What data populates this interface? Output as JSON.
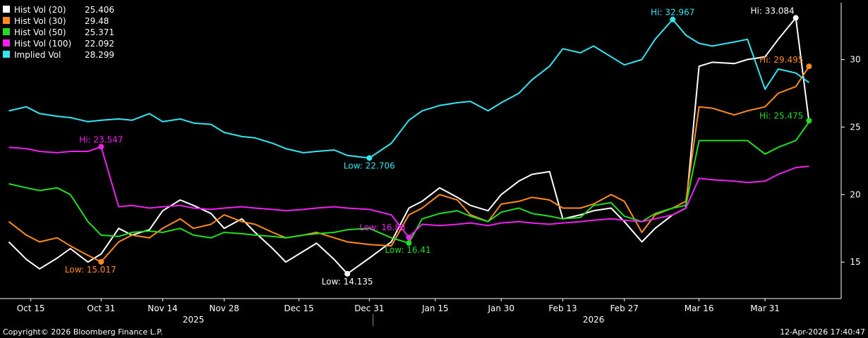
{
  "chart_data": {
    "type": "line",
    "x_dates": [
      "2025-10-10",
      "2025-10-14",
      "2025-10-17",
      "2025-10-21",
      "2025-10-24",
      "2025-10-28",
      "2025-10-31",
      "2025-11-04",
      "2025-11-07",
      "2025-11-11",
      "2025-11-14",
      "2025-11-18",
      "2025-11-21",
      "2025-11-25",
      "2025-11-28",
      "2025-12-02",
      "2025-12-05",
      "2025-12-09",
      "2025-12-12",
      "2025-12-16",
      "2025-12-19",
      "2025-12-23",
      "2025-12-26",
      "2025-12-31",
      "2026-01-05",
      "2026-01-09",
      "2026-01-12",
      "2026-01-16",
      "2026-01-20",
      "2026-01-23",
      "2026-01-27",
      "2026-01-30",
      "2026-02-03",
      "2026-02-06",
      "2026-02-10",
      "2026-02-13",
      "2026-02-17",
      "2026-02-20",
      "2026-02-24",
      "2026-02-27",
      "2026-03-03",
      "2026-03-06",
      "2026-03-10",
      "2026-03-13",
      "2026-03-16",
      "2026-03-19",
      "2026-03-24",
      "2026-03-27",
      "2026-03-31",
      "2026-04-03",
      "2026-04-07",
      "2026-04-10"
    ],
    "series": [
      {
        "name": "Hist Vol (20)",
        "color": "#ffffff",
        "last": "25.406",
        "values": [
          16.5,
          15.2,
          14.5,
          15.3,
          16.0,
          15.0,
          15.6,
          17.5,
          17.0,
          17.4,
          18.8,
          19.6,
          19.2,
          18.6,
          17.5,
          18.2,
          17.2,
          16.0,
          15.0,
          15.8,
          16.4,
          15.2,
          14.135,
          15.3,
          16.5,
          19.0,
          19.5,
          20.5,
          19.8,
          19.2,
          18.8,
          20.0,
          21.0,
          21.5,
          21.7,
          18.2,
          18.5,
          18.8,
          19.0,
          18.0,
          16.5,
          17.5,
          18.5,
          19.0,
          29.5,
          29.8,
          29.7,
          30.0,
          30.2,
          31.5,
          33.084,
          25.406
        ]
      },
      {
        "name": "Hist Vol (30)",
        "color": "#ff8c1a",
        "last": "29.48",
        "values": [
          18.0,
          17.0,
          16.5,
          16.8,
          16.2,
          15.5,
          15.017,
          16.5,
          17.0,
          16.8,
          17.5,
          18.2,
          17.5,
          17.8,
          18.5,
          18.0,
          17.8,
          17.2,
          16.8,
          17.0,
          17.2,
          16.8,
          16.5,
          16.3,
          16.2,
          18.5,
          19.0,
          20.0,
          19.6,
          18.5,
          18.0,
          19.3,
          19.5,
          19.8,
          19.6,
          19.0,
          19.0,
          19.3,
          20.0,
          19.5,
          17.2,
          18.5,
          19.0,
          19.5,
          26.5,
          26.4,
          25.9,
          26.2,
          26.5,
          27.5,
          28.0,
          29.48
        ]
      },
      {
        "name": "Hist Vol (50)",
        "color": "#22dd22",
        "last": "25.371",
        "values": [
          20.8,
          20.5,
          20.3,
          20.5,
          20.0,
          18.0,
          17.0,
          16.9,
          17.2,
          17.3,
          17.2,
          17.5,
          17.0,
          16.8,
          17.2,
          17.1,
          17.0,
          16.9,
          16.8,
          17.0,
          17.1,
          17.2,
          17.4,
          17.5,
          16.8,
          16.41,
          18.2,
          18.6,
          18.8,
          18.4,
          18.0,
          18.7,
          19.0,
          18.6,
          18.4,
          18.2,
          18.3,
          19.2,
          19.4,
          18.4,
          18.0,
          18.6,
          19.0,
          19.2,
          24.0,
          24.0,
          24.0,
          24.0,
          23.0,
          23.5,
          24.0,
          25.371
        ]
      },
      {
        "name": "Hist Vol (100)",
        "color": "#ee22ee",
        "last": "22.092",
        "values": [
          23.5,
          23.4,
          23.2,
          23.1,
          23.2,
          23.2,
          23.547,
          19.1,
          19.2,
          19.0,
          19.1,
          19.2,
          19.0,
          18.9,
          19.0,
          19.1,
          19.0,
          18.9,
          18.8,
          18.9,
          19.0,
          19.1,
          19.0,
          18.9,
          18.5,
          16.83,
          17.8,
          17.7,
          17.8,
          17.9,
          17.7,
          17.9,
          18.0,
          17.9,
          17.8,
          17.9,
          18.0,
          18.1,
          18.2,
          18.1,
          18.0,
          18.2,
          18.5,
          19.0,
          21.2,
          21.1,
          21.0,
          20.9,
          21.0,
          21.5,
          22.0,
          22.092
        ]
      },
      {
        "name": "Implied Vol",
        "color": "#33e6f0",
        "last": "28.299",
        "values": [
          26.2,
          26.5,
          26.0,
          25.8,
          25.7,
          25.4,
          25.5,
          25.6,
          25.5,
          26.0,
          25.4,
          25.6,
          25.3,
          25.2,
          24.6,
          24.3,
          24.2,
          23.8,
          23.4,
          23.1,
          23.2,
          23.3,
          22.9,
          22.706,
          23.8,
          25.5,
          26.2,
          26.6,
          26.8,
          26.9,
          26.2,
          26.8,
          27.5,
          28.5,
          29.5,
          30.8,
          30.5,
          31.0,
          30.2,
          29.6,
          30.0,
          31.5,
          32.967,
          31.8,
          31.2,
          31.0,
          31.3,
          31.5,
          27.8,
          29.3,
          29.0,
          28.299
        ]
      }
    ],
    "annotations": [
      {
        "text": "Hi: 33.084",
        "series": 0,
        "index": 50,
        "value": 33.084
      },
      {
        "text": "Low: 14.135",
        "series": 0,
        "index": 22,
        "value": 14.135
      },
      {
        "text": "Hi: 29.495",
        "series": 1,
        "index": 51,
        "value": 29.495
      },
      {
        "text": "Low: 15.017",
        "series": 1,
        "index": 6,
        "value": 15.017
      },
      {
        "text": "Hi: 25.475",
        "series": 2,
        "index": 51,
        "value": 25.475
      },
      {
        "text": "Low: 16.41",
        "series": 2,
        "index": 25,
        "value": 16.41
      },
      {
        "text": "Hi: 23.547",
        "series": 3,
        "index": 6,
        "value": 23.547
      },
      {
        "text": "Low: 16.83",
        "series": 3,
        "index": 25,
        "value": 16.83
      },
      {
        "text": "Hi: 32.967",
        "series": 4,
        "index": 42,
        "value": 32.967
      },
      {
        "text": "Low: 22.706",
        "series": 4,
        "index": 23,
        "value": 22.706
      }
    ],
    "x_tick_labels": [
      {
        "label": "Oct 15",
        "date": "2025-10-15"
      },
      {
        "label": "Oct 31",
        "date": "2025-10-31"
      },
      {
        "label": "Nov 14",
        "date": "2025-11-14"
      },
      {
        "label": "Nov 28",
        "date": "2025-11-28"
      },
      {
        "label": "Dec 15",
        "date": "2025-12-15"
      },
      {
        "label": "Dec 31",
        "date": "2025-12-31"
      },
      {
        "label": "Jan 15",
        "date": "2026-01-15"
      },
      {
        "label": "Jan 30",
        "date": "2026-01-30"
      },
      {
        "label": "Feb 13",
        "date": "2026-02-13"
      },
      {
        "label": "Feb 27",
        "date": "2026-02-27"
      },
      {
        "label": "Mar 16",
        "date": "2026-03-16"
      },
      {
        "label": "Mar 31",
        "date": "2026-03-31"
      }
    ],
    "year_labels": [
      {
        "label": "2025",
        "date": "2025-11-21"
      },
      {
        "label": "2026",
        "date": "2026-02-20"
      }
    ],
    "y_ticks": [
      15,
      20,
      25,
      30
    ],
    "ylim": [
      12.3,
      34.2
    ],
    "xlim": [
      "2025-10-08",
      "2026-04-17"
    ],
    "grid": false,
    "legend_placement": "top-left"
  },
  "footer": {
    "copyright": "Copyright© 2026 Bloomberg Finance L.P.",
    "timestamp": "12-Apr-2026 17:40:47"
  }
}
